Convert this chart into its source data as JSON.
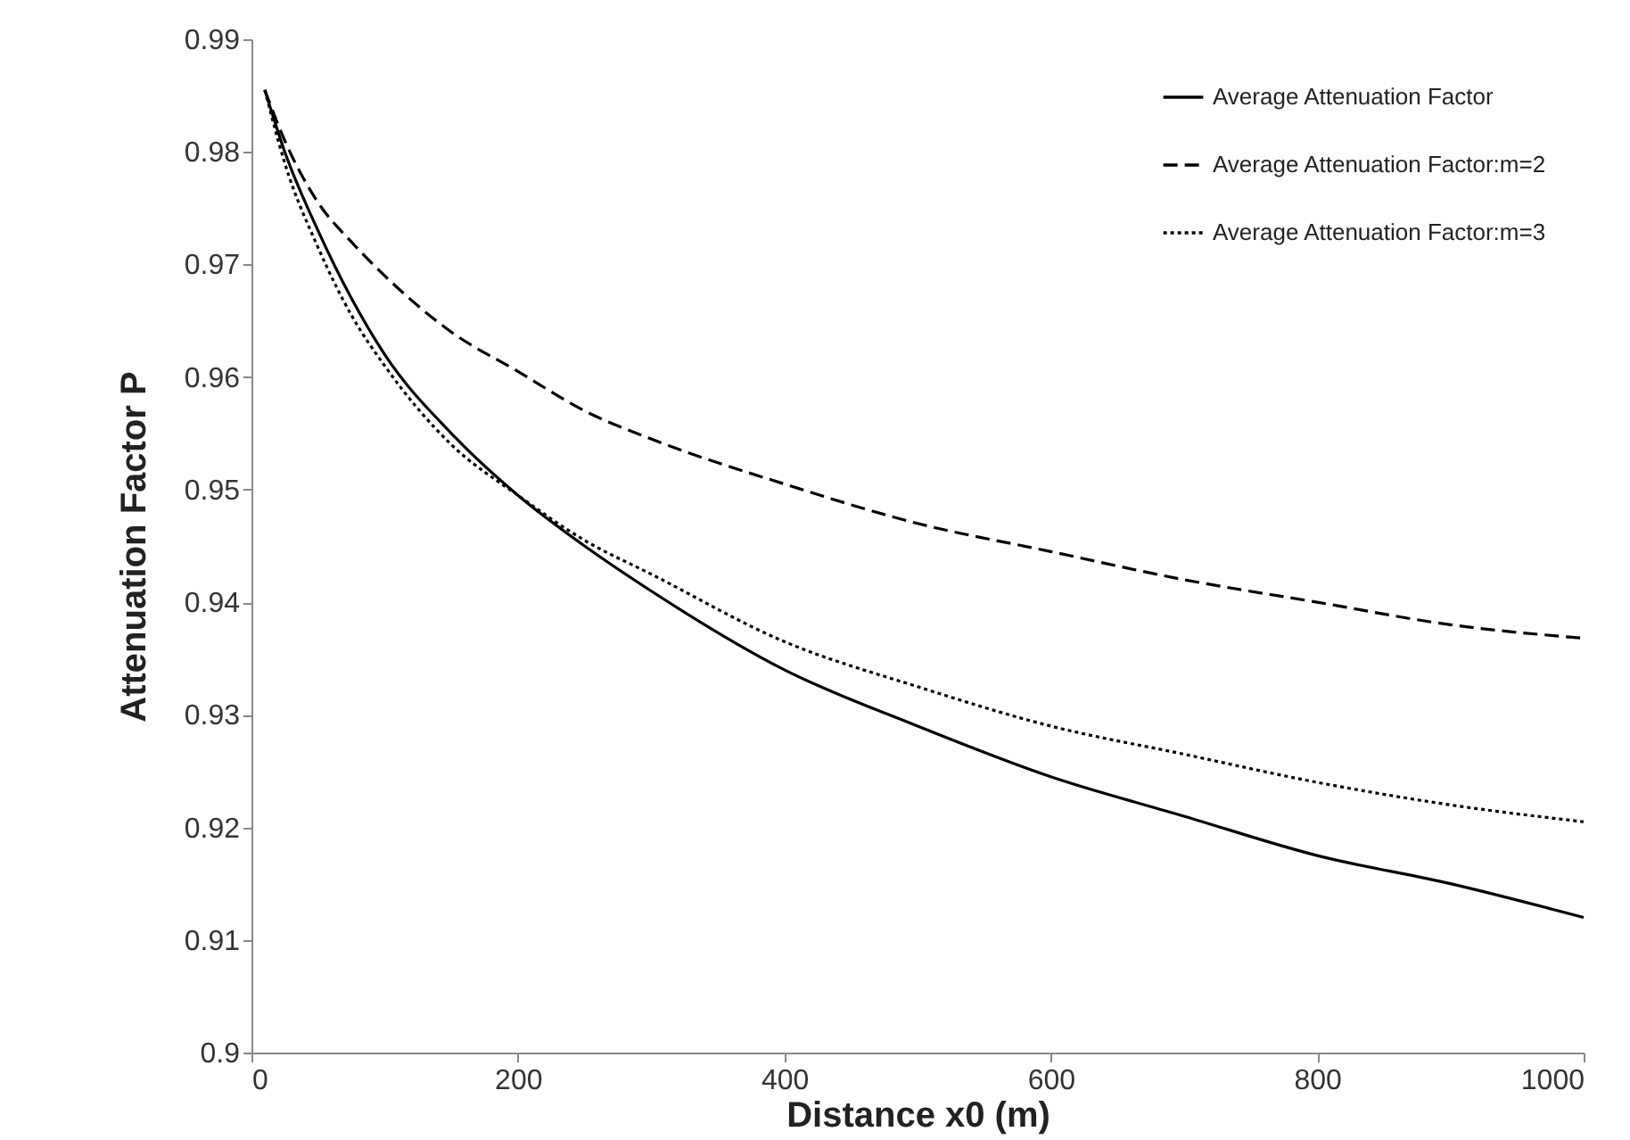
{
  "chart_data": {
    "type": "line",
    "xlabel": "Distance x0 (m)",
    "ylabel": "Attenuation Factor P",
    "x": [
      10,
      25,
      50,
      75,
      100,
      150,
      200,
      250,
      300,
      400,
      500,
      600,
      700,
      800,
      900,
      1000
    ],
    "series": [
      {
        "name": "Average Attenuation Factor",
        "color": "#000000",
        "line_style": "solid",
        "values": [
          0.9855,
          0.98,
          0.973,
          0.967,
          0.962,
          0.955,
          0.9495,
          0.945,
          0.941,
          0.934,
          0.929,
          0.9245,
          0.921,
          0.9175,
          0.915,
          0.912
        ]
      },
      {
        "name": "Average Attenuation Factor:m=2",
        "color": "#000000",
        "line_style": "dashed",
        "values": [
          0.9855,
          0.981,
          0.9755,
          0.972,
          0.969,
          0.964,
          0.9605,
          0.957,
          0.9545,
          0.9505,
          0.947,
          0.9445,
          0.942,
          0.94,
          0.938,
          0.9368
        ]
      },
      {
        "name": "Average Attenuation Factor:m=3",
        "color": "#000000",
        "line_style": "dotted",
        "values": [
          0.9855,
          0.979,
          0.9715,
          0.9655,
          0.961,
          0.954,
          0.9495,
          0.9455,
          0.9425,
          0.9365,
          0.9325,
          0.929,
          0.9265,
          0.924,
          0.922,
          0.9205
        ]
      }
    ],
    "xlim": [
      0,
      1000
    ],
    "xticks": [
      0,
      200,
      400,
      600,
      800,
      1000
    ],
    "ylim": [
      0.9,
      0.99
    ],
    "yticks": [
      0.9,
      0.91,
      0.92,
      0.93,
      0.94,
      0.95,
      0.96,
      0.97,
      0.98,
      0.99
    ],
    "grid": false,
    "legend": "top right",
    "marker": "none"
  }
}
